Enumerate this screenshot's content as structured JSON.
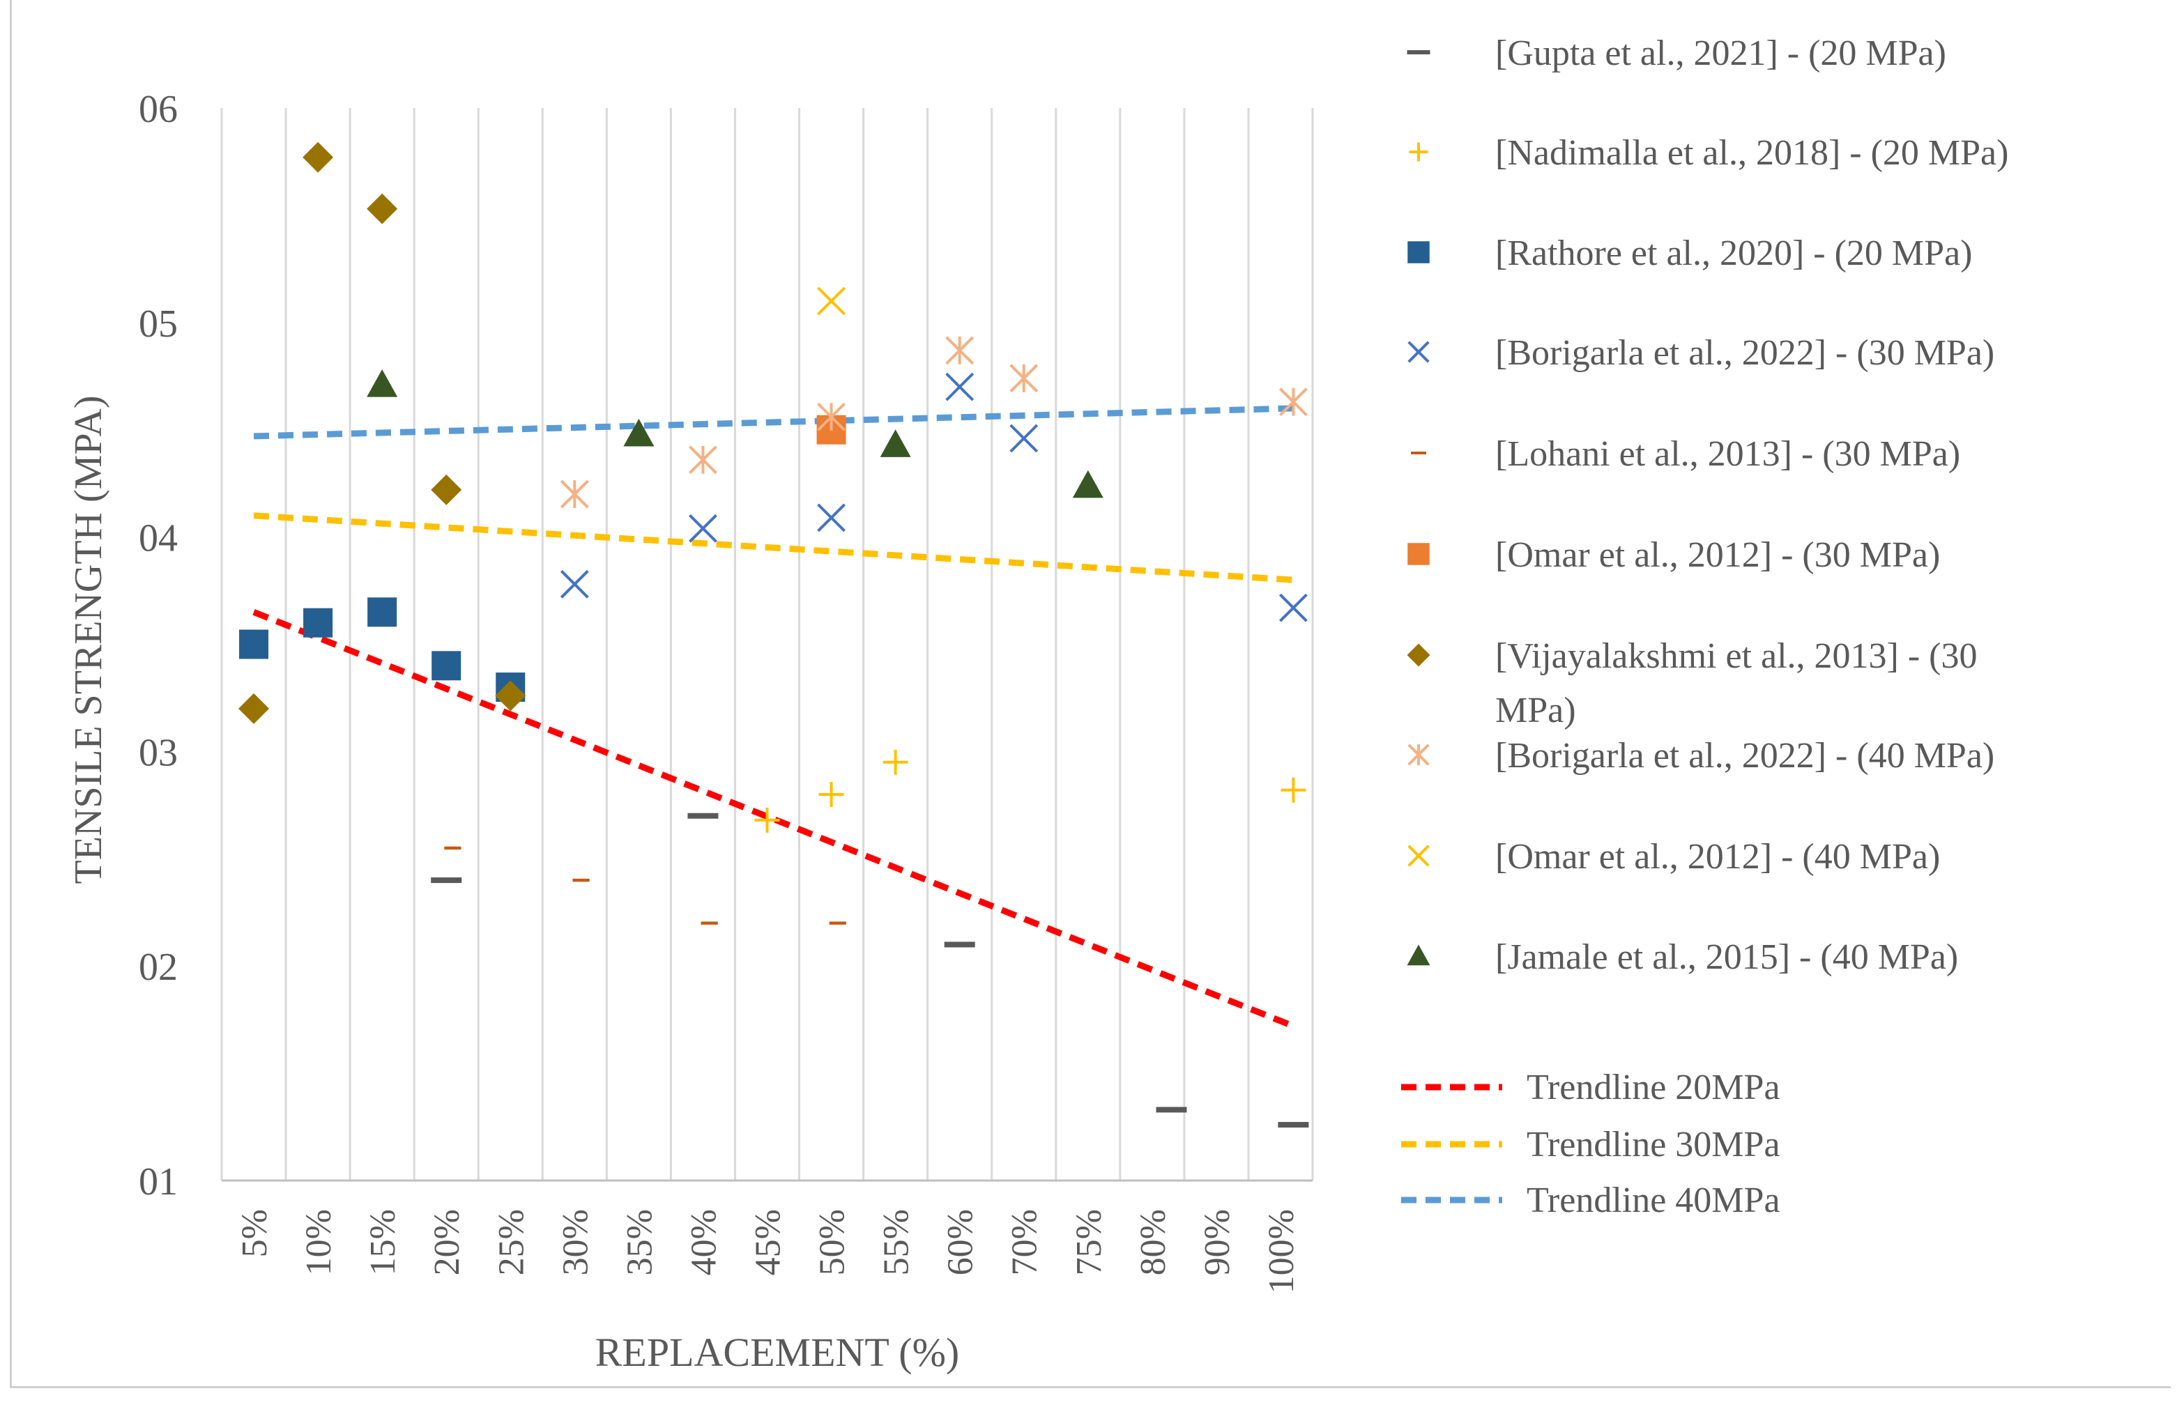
{
  "chart_data": {
    "type": "scatter",
    "title": "",
    "xlabel": "REPLACEMENT (%)",
    "ylabel": "TENSILE STRENGTH (MPA)",
    "categories": [
      "5%",
      "10%",
      "15%",
      "20%",
      "25%",
      "30%",
      "35%",
      "40%",
      "45%",
      "50%",
      "55%",
      "60%",
      "70%",
      "75%",
      "80%",
      "90%",
      "100%"
    ],
    "y_tick_labels": [
      "01",
      "02",
      "03",
      "04",
      "05",
      "06"
    ],
    "ylim": [
      1,
      6
    ],
    "grid": "vertical",
    "legend_position": "right",
    "series": [
      {
        "name": "[Gupta et al., 2021] - (20 MPa)",
        "marker": "dash",
        "color": "#595959",
        "points": [
          {
            "x": 3.0,
            "y": 2.4
          },
          {
            "x": 7.0,
            "y": 2.7
          },
          {
            "x": 11.0,
            "y": 2.1
          },
          {
            "x": 14.3,
            "y": 1.33
          },
          {
            "x": 16.2,
            "y": 1.26
          }
        ]
      },
      {
        "name": "[Nadimalla et al., 2018] - (20 MPa)",
        "marker": "plus",
        "color": "#FFC000",
        "points": [
          {
            "x": 8.0,
            "y": 2.68
          },
          {
            "x": 9.0,
            "y": 2.8
          },
          {
            "x": 10.0,
            "y": 2.95
          },
          {
            "x": 16.2,
            "y": 2.82
          }
        ]
      },
      {
        "name": "[Rathore et al., 2020] - (20 MPa)",
        "marker": "square",
        "color": "#255E91",
        "points": [
          {
            "x": 0.0,
            "y": 3.5
          },
          {
            "x": 1.0,
            "y": 3.6
          },
          {
            "x": 2.0,
            "y": 3.65
          },
          {
            "x": 3.0,
            "y": 3.4
          },
          {
            "x": 4.0,
            "y": 3.3
          }
        ]
      },
      {
        "name": "[Borigarla et al., 2022] - (30 MPa)",
        "marker": "x",
        "color": "#4472C4",
        "points": [
          {
            "x": 5.0,
            "y": 3.78
          },
          {
            "x": 7.0,
            "y": 4.04
          },
          {
            "x": 9.0,
            "y": 4.09
          },
          {
            "x": 11.0,
            "y": 4.7
          },
          {
            "x": 12.0,
            "y": 4.46
          },
          {
            "x": 16.2,
            "y": 3.67
          }
        ]
      },
      {
        "name": "[Lohani et al., 2013] - (30 MPa)",
        "marker": "dash",
        "color": "#C55A11",
        "points": [
          {
            "x": 3.1,
            "y": 2.55
          },
          {
            "x": 5.1,
            "y": 2.4
          },
          {
            "x": 7.1,
            "y": 2.2
          },
          {
            "x": 9.1,
            "y": 2.2
          }
        ]
      },
      {
        "name": "[Omar et al., 2012] - (30 MPa)",
        "marker": "square",
        "color": "#ED7D31",
        "points": [
          {
            "x": 9.0,
            "y": 4.5
          }
        ]
      },
      {
        "name": "[Vijayalakshmi et al., 2013] - (30 MPa)",
        "marker": "diamond",
        "color": "#997300",
        "points": [
          {
            "x": 0.0,
            "y": 3.2
          },
          {
            "x": 1.0,
            "y": 5.77
          },
          {
            "x": 2.0,
            "y": 5.53
          },
          {
            "x": 3.0,
            "y": 4.22
          },
          {
            "x": 4.0,
            "y": 3.26
          }
        ]
      },
      {
        "name": "[Borigarla et al., 2022] - (40 MPa)",
        "marker": "asterisk",
        "color": "#F4B183",
        "points": [
          {
            "x": 5.0,
            "y": 4.2
          },
          {
            "x": 7.0,
            "y": 4.36
          },
          {
            "x": 9.0,
            "y": 4.56
          },
          {
            "x": 11.0,
            "y": 4.87
          },
          {
            "x": 12.0,
            "y": 4.74
          },
          {
            "x": 16.2,
            "y": 4.63
          }
        ]
      },
      {
        "name": "[Omar et al., 2012] - (40 MPa)",
        "marker": "x",
        "color": "#FFC000",
        "points": [
          {
            "x": 9.0,
            "y": 5.1
          }
        ]
      },
      {
        "name": "[Jamale et al., 2015] - (40 MPa)",
        "marker": "triangle",
        "color": "#375623",
        "points": [
          {
            "x": 2.0,
            "y": 4.71
          },
          {
            "x": 6.0,
            "y": 4.48
          },
          {
            "x": 10.0,
            "y": 4.43
          },
          {
            "x": 13.0,
            "y": 4.24
          }
        ]
      }
    ],
    "trendlines": [
      {
        "name": "Trendline 20MPa",
        "color": "#FF0000",
        "start": {
          "x": 0.0,
          "y": 3.65
        },
        "end": {
          "x": 16.2,
          "y": 1.72
        }
      },
      {
        "name": "Trendline 30MPa",
        "color": "#FFC000",
        "start": {
          "x": 0.0,
          "y": 4.1
        },
        "end": {
          "x": 16.2,
          "y": 3.8
        }
      },
      {
        "name": "Trendline 40MPa",
        "color": "#5B9BD5",
        "start": {
          "x": 0.0,
          "y": 4.47
        },
        "end": {
          "x": 16.2,
          "y": 4.6
        }
      }
    ]
  }
}
